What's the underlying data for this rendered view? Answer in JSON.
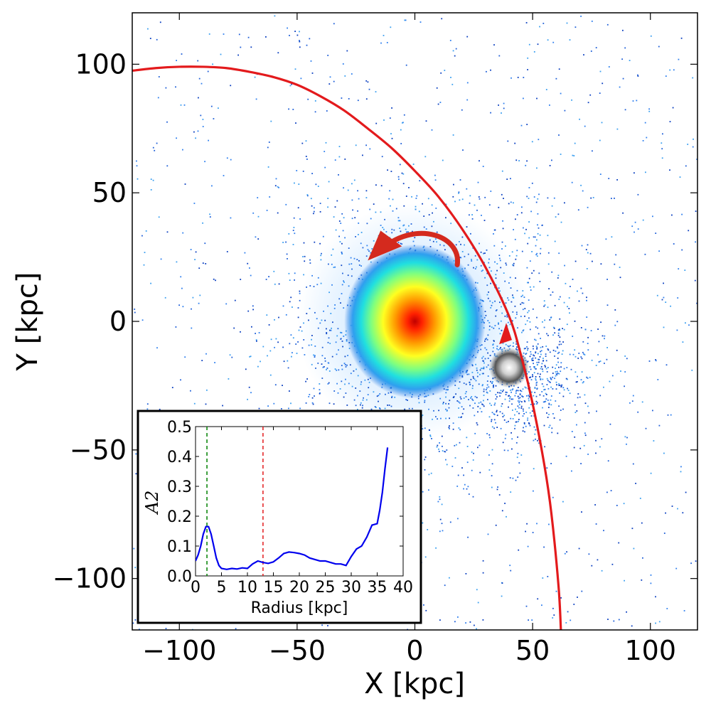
{
  "chart_data": [
    {
      "type": "scatter",
      "subtype": "particle-density-map",
      "title": "",
      "xlabel": "X [kpc]",
      "ylabel": "Y [kpc]",
      "xlim": [
        -120,
        120
      ],
      "ylim": [
        -120,
        120
      ],
      "xticks": [
        -100,
        -50,
        0,
        50,
        100
      ],
      "yticks": [
        -100,
        -50,
        0,
        50,
        100
      ],
      "xtick_labels": [
        "−100",
        "−50",
        "0",
        "50",
        "100"
      ],
      "ytick_labels": [
        "−100",
        "−50",
        "0",
        "50",
        "100"
      ],
      "colormap": "jet (white background)",
      "main_galaxy_center": [
        0,
        0
      ],
      "satellite_center": [
        40,
        -18
      ],
      "orbit": {
        "name": "satellite orbit",
        "color": "#e31a1c",
        "x": [
          -120,
          -110,
          -100,
          -90,
          -80,
          -70,
          -60,
          -50,
          -40,
          -30,
          -20,
          -10,
          0,
          10,
          20,
          30,
          40,
          45,
          50,
          55,
          58,
          61,
          62
        ],
        "y": [
          97.5,
          98.5,
          99,
          99,
          98.5,
          97,
          95,
          92,
          87.5,
          82,
          75,
          67.5,
          58.5,
          48.5,
          36,
          21,
          2,
          -13,
          -32,
          -56,
          -75,
          -103,
          -120
        ]
      },
      "orbit_arrow_at": [
        40,
        -5
      ],
      "rotation_arrow": {
        "label": "disc rotation direction",
        "color": "#d42a1e",
        "from": [
          18,
          22
        ],
        "to": [
          -20,
          27
        ]
      }
    },
    {
      "type": "line",
      "inset": true,
      "title": "",
      "xlabel": "Radius [kpc]",
      "ylabel": "A2",
      "xlim": [
        0,
        40
      ],
      "ylim": [
        0.0,
        0.5
      ],
      "xticks": [
        0,
        5,
        10,
        15,
        20,
        25,
        30,
        35,
        40
      ],
      "yticks": [
        0.0,
        0.1,
        0.2,
        0.3,
        0.4,
        0.5
      ],
      "xtick_labels": [
        "0",
        "5",
        "10",
        "15",
        "20",
        "25",
        "30",
        "35",
        "40"
      ],
      "ytick_labels": [
        "0.0",
        "0.1",
        "0.2",
        "0.3",
        "0.4",
        "0.5"
      ],
      "series": [
        {
          "name": "A2",
          "color": "#0000ee",
          "x": [
            0,
            0.5,
            1,
            1.5,
            2,
            2.5,
            3,
            3.5,
            4,
            4.5,
            5,
            6,
            7,
            8,
            9,
            10,
            11,
            12,
            13,
            14,
            15,
            16,
            17,
            18,
            19,
            20,
            21,
            22,
            23,
            24,
            25,
            26,
            27,
            28,
            29,
            30,
            31,
            32,
            33,
            34,
            35,
            35.5,
            36,
            36.5,
            37
          ],
          "y": [
            0.05,
            0.07,
            0.1,
            0.14,
            0.165,
            0.165,
            0.14,
            0.1,
            0.06,
            0.035,
            0.025,
            0.022,
            0.025,
            0.023,
            0.027,
            0.025,
            0.04,
            0.05,
            0.045,
            0.042,
            0.047,
            0.06,
            0.075,
            0.08,
            0.078,
            0.075,
            0.07,
            0.06,
            0.055,
            0.05,
            0.05,
            0.045,
            0.04,
            0.04,
            0.035,
            0.065,
            0.09,
            0.1,
            0.13,
            0.17,
            0.175,
            0.22,
            0.28,
            0.36,
            0.43
          ]
        }
      ],
      "vlines": [
        {
          "x": 2.2,
          "color": "#008000",
          "style": "dashed"
        },
        {
          "x": 13,
          "color": "#e31a1c",
          "style": "dashed"
        }
      ]
    }
  ]
}
